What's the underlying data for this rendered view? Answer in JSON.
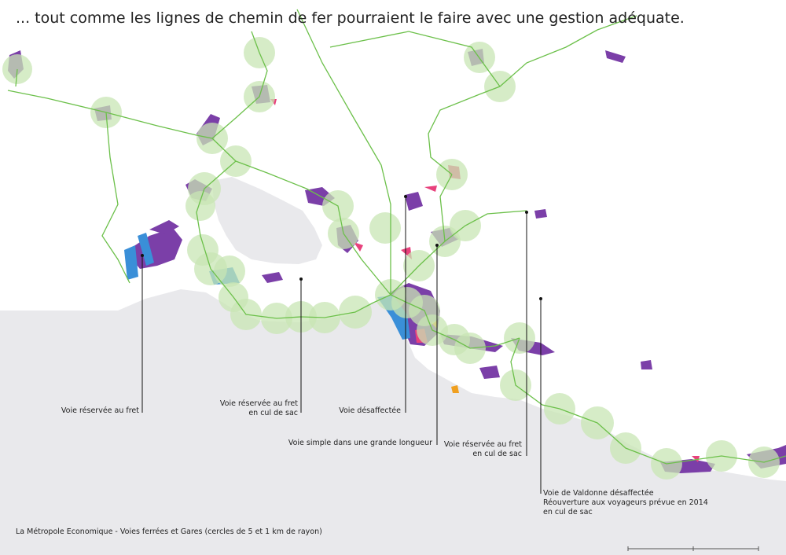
{
  "title": "... tout comme les lignes de chemin de fer pourraient le faire avec une gestion adéquate.",
  "caption": "La Métropole Economique - Voies ferrées et Gares (cercles de 5 et 1 km de rayon)",
  "colors": {
    "sea": "#e9e9ec",
    "land": "#ffffff",
    "rail": "#6cc04a",
    "station_buffer": "#c8e6b4",
    "industrial": "#7b3fa8",
    "commercial": "#e8417c",
    "port": "#3a8fd8",
    "activity_orange": "#f0a020"
  },
  "labels": {
    "fret": {
      "lines": [
        "Voie réservée au fret"
      ]
    },
    "fret_cul_de_sac_west": {
      "lines": [
        "Voie réservée au fret",
        "en cul de sac"
      ]
    },
    "desaffectee": {
      "lines": [
        "Voie désaffectée"
      ]
    },
    "voie_simple": {
      "lines": [
        "Voie simple dans une grande longueur"
      ]
    },
    "fret_cul_de_sac_east": {
      "lines": [
        "Voie réservée au fret",
        "en cul de sac"
      ]
    },
    "valdonne": {
      "lines": [
        "Voie de Valdonne désaffectée",
        "Réouverture aux voyageurs prévue en 2014",
        "en cul de sac"
      ]
    }
  }
}
